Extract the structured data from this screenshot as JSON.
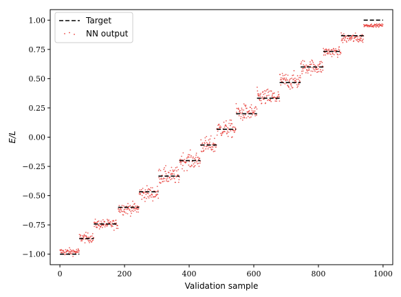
{
  "chart_data": {
    "type": "scatter",
    "xlabel": "Validation sample",
    "ylabel": "E/L",
    "xlim": [
      -30,
      1030
    ],
    "ylim": [
      -1.09,
      1.09
    ],
    "xticks": [
      0,
      200,
      400,
      600,
      800,
      1000
    ],
    "xtick_labels": [
      "0",
      "200",
      "400",
      "600",
      "800",
      "1000"
    ],
    "yticks": [
      -1.0,
      -0.75,
      -0.5,
      -0.25,
      0.0,
      0.25,
      0.5,
      0.75,
      1.0
    ],
    "ytick_labels": [
      "−1.00",
      "−0.75",
      "−0.50",
      "−0.25",
      "0.00",
      "0.25",
      "0.50",
      "0.75",
      "1.00"
    ],
    "grid": false,
    "legend_position": "top-left",
    "series": [
      {
        "name": "Target",
        "style": "dashed-line",
        "color": "#000000",
        "segments": [
          {
            "x": [
              0,
              60
            ],
            "y": -1.0
          },
          {
            "x": [
              60,
              105
            ],
            "y": -0.867
          },
          {
            "x": [
              105,
              180
            ],
            "y": -0.742
          },
          {
            "x": [
              180,
              245
            ],
            "y": -0.6
          },
          {
            "x": [
              245,
              305
            ],
            "y": -0.467
          },
          {
            "x": [
              305,
              370
            ],
            "y": -0.333
          },
          {
            "x": [
              370,
              435
            ],
            "y": -0.2
          },
          {
            "x": [
              435,
              485
            ],
            "y": -0.067
          },
          {
            "x": [
              485,
              545
            ],
            "y": 0.067
          },
          {
            "x": [
              545,
              610
            ],
            "y": 0.2
          },
          {
            "x": [
              610,
              680
            ],
            "y": 0.333
          },
          {
            "x": [
              680,
              745
            ],
            "y": 0.467
          },
          {
            "x": [
              745,
              815
            ],
            "y": 0.6
          },
          {
            "x": [
              815,
              870
            ],
            "y": 0.733
          },
          {
            "x": [
              870,
              940
            ],
            "y": 0.867
          },
          {
            "x": [
              940,
              1000
            ],
            "y": 1.0
          }
        ]
      },
      {
        "name": "NN output",
        "style": "points",
        "color": "#e8413c",
        "groups": [
          {
            "x": [
              0,
              60
            ],
            "y": -0.98,
            "spread": 0.015
          },
          {
            "x": [
              60,
              105
            ],
            "y": -0.86,
            "spread": 0.02
          },
          {
            "x": [
              105,
              180
            ],
            "y": -0.745,
            "spread": 0.02
          },
          {
            "x": [
              180,
              245
            ],
            "y": -0.61,
            "spread": 0.025
          },
          {
            "x": [
              245,
              305
            ],
            "y": -0.48,
            "spread": 0.03
          },
          {
            "x": [
              305,
              370
            ],
            "y": -0.33,
            "spread": 0.035
          },
          {
            "x": [
              370,
              435
            ],
            "y": -0.2,
            "spread": 0.035
          },
          {
            "x": [
              435,
              485
            ],
            "y": -0.07,
            "spread": 0.035
          },
          {
            "x": [
              485,
              545
            ],
            "y": 0.07,
            "spread": 0.035
          },
          {
            "x": [
              545,
              610
            ],
            "y": 0.21,
            "spread": 0.035
          },
          {
            "x": [
              610,
              680
            ],
            "y": 0.34,
            "spread": 0.035
          },
          {
            "x": [
              680,
              745
            ],
            "y": 0.48,
            "spread": 0.035
          },
          {
            "x": [
              745,
              815
            ],
            "y": 0.6,
            "spread": 0.03
          },
          {
            "x": [
              815,
              870
            ],
            "y": 0.73,
            "spread": 0.02
          },
          {
            "x": [
              870,
              940
            ],
            "y": 0.845,
            "spread": 0.02
          },
          {
            "x": [
              940,
              1000
            ],
            "y": 0.955,
            "spread": 0.006
          }
        ]
      }
    ]
  }
}
